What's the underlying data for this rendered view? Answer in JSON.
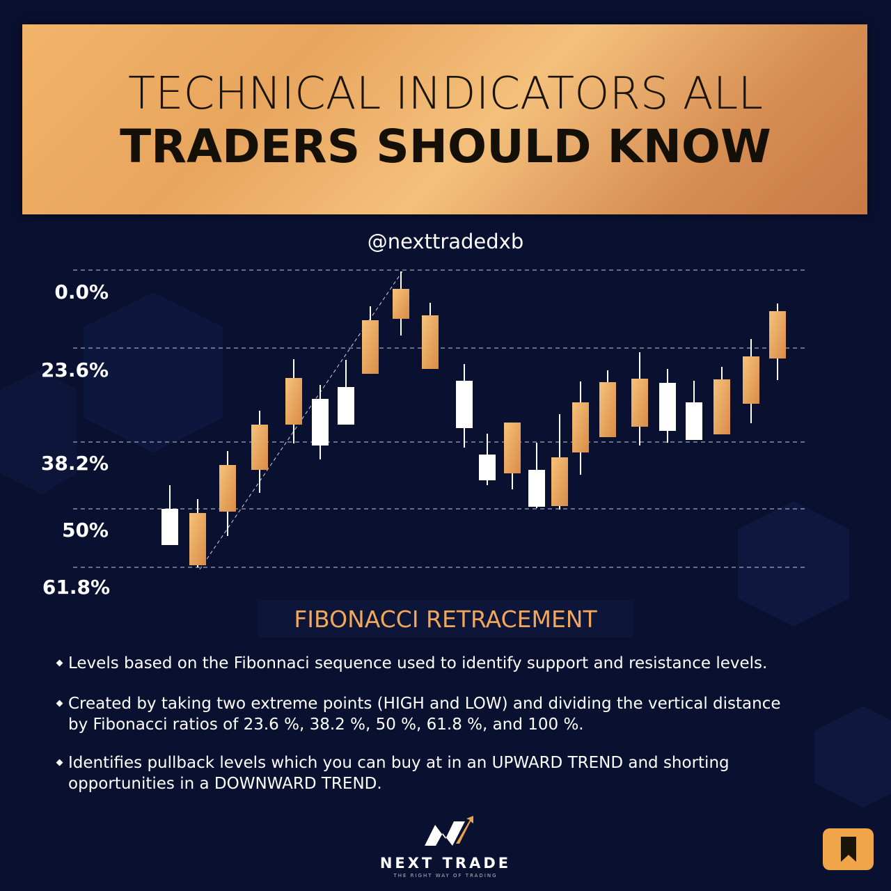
{
  "header": {
    "title_line1": "TECHNICAL INDICATORS ALL",
    "title_line2": "TRADERS SHOULD KNOW"
  },
  "handle": "@nexttradedxb",
  "levels": [
    "0.0%",
    "23.6%",
    "38.2%",
    "50%",
    "61.8%"
  ],
  "section_title": "FIBONACCI RETRACEMENT",
  "bullets": [
    "Levels based on the Fibonnaci sequence used to identify support and resistance levels.",
    "Created by taking two extreme points (HIGH and LOW) and dividing the vertical distance by Fibonacci ratios of 23.6 %, 38.2 %, 50 %, 61.8 %, and 100 %.",
    "Identifies pullback levels which you can buy at in an UPWARD TREND and shorting opportunities in a DOWNWARD TREND."
  ],
  "logo": {
    "name": "NEXT TRADE",
    "tagline": "THE RIGHT WAY OF TRADING"
  }
}
